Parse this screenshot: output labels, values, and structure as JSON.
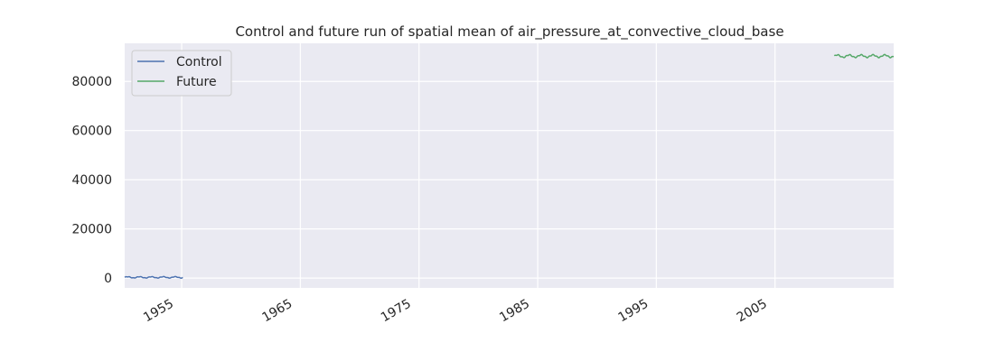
{
  "chart_data": {
    "type": "line",
    "title": "Control and future run of spatial mean of air_pressure_at_convective_cloud_base",
    "xlabel": "",
    "ylabel": "",
    "xlim": [
      1950.2,
      2015.0
    ],
    "ylim": [
      -4000,
      95500
    ],
    "x_ticks": [
      1955,
      1965,
      1975,
      1985,
      1995,
      2005
    ],
    "x_tick_labels": [
      "1955",
      "1965",
      "1975",
      "1985",
      "1995",
      "2005"
    ],
    "y_ticks": [
      0,
      20000,
      40000,
      60000,
      80000
    ],
    "y_tick_labels": [
      "0",
      "20000",
      "40000",
      "60000",
      "80000"
    ],
    "grid": true,
    "legend_position": "top-left",
    "series": [
      {
        "name": "Control",
        "color": "#4c72b0",
        "x_start": 1950.2,
        "x_end": 1955.1,
        "mean": 300,
        "amplitude": 250,
        "period_years": 1
      },
      {
        "name": "Future",
        "color": "#55a868",
        "x_start": 2010.0,
        "x_end": 2015.0,
        "mean": 90300,
        "amplitude": 500,
        "period_years": 1
      }
    ]
  }
}
